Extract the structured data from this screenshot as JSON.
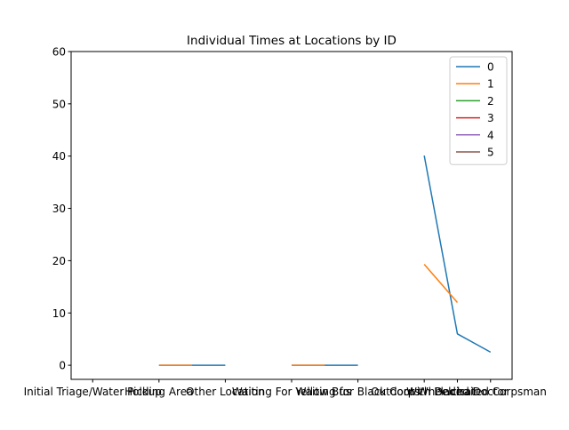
{
  "chart_data": {
    "type": "line",
    "title": "Individual Times at Locations by ID",
    "xlabel": "",
    "ylabel": "",
    "categories": [
      "Initial Triage/Water Pickup",
      "Holding Area",
      "Other Location",
      "Waiting For Yellow Bus",
      "Waiting for Black Corps",
      "Outdoor Wheelchair",
      "With Placed Doctor",
      "Dedicated Corpsman"
    ],
    "ylim": [
      -2.7,
      60
    ],
    "yticks": [
      0,
      10,
      20,
      30,
      40,
      50,
      60
    ],
    "legend_position": "upper right",
    "grid": false,
    "series": [
      {
        "name": "0",
        "color": "#1f77b4",
        "points": [
          {
            "x": 2,
            "y": 0
          },
          {
            "x": 3,
            "y": 0
          },
          {
            "x": 4,
            "y": 0
          },
          {
            "x": 6,
            "y": 0
          },
          {
            "x": 7,
            "y": 0
          },
          {
            "x": 8,
            "y": 0
          },
          {
            "x": 10,
            "y": 40.1
          },
          {
            "x": 11,
            "y": 6.0
          },
          {
            "x": 12,
            "y": 2.5
          }
        ]
      },
      {
        "name": "1",
        "color": "#ff7f0e",
        "points": [
          {
            "x": 2,
            "y": 0
          },
          {
            "x": 3,
            "y": 0
          },
          {
            "x": 6,
            "y": 0
          },
          {
            "x": 7,
            "y": 0
          },
          {
            "x": 10,
            "y": 19.3
          },
          {
            "x": 11,
            "y": 12.0
          }
        ]
      },
      {
        "name": "2",
        "color": "#2ca02c",
        "points": []
      },
      {
        "name": "3",
        "color": "#d62728",
        "points": []
      },
      {
        "name": "4",
        "color": "#9467bd",
        "points": []
      },
      {
        "name": "5",
        "color": "#8c564b",
        "points": []
      }
    ],
    "x_tick_positions": [
      0,
      2,
      4,
      6,
      8,
      10,
      11,
      12
    ],
    "xlim": [
      -0.65,
      12.65
    ]
  }
}
